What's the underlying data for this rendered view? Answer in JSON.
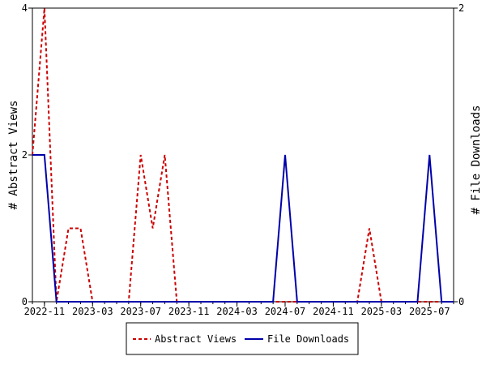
{
  "chart_data": {
    "type": "line",
    "xlabel": "",
    "ylabel_left": "# Abstract Views",
    "ylabel_right": "# File Downloads",
    "ylim_left": [
      0,
      4
    ],
    "ylim_right": [
      0,
      2
    ],
    "yticks_left": [
      "0",
      "2",
      "4"
    ],
    "yticks_right": [
      "0",
      "2"
    ],
    "x_tick_labels": [
      "2022-11",
      "2023-03",
      "2023-07",
      "2023-11",
      "2024-03",
      "2024-07",
      "2024-11",
      "2025-03",
      "2025-07"
    ],
    "x": [
      "2022-10",
      "2022-11",
      "2022-12",
      "2023-01",
      "2023-02",
      "2023-03",
      "2023-04",
      "2023-05",
      "2023-06",
      "2023-07",
      "2023-08",
      "2023-09",
      "2023-10",
      "2023-11",
      "2023-12",
      "2024-01",
      "2024-02",
      "2024-03",
      "2024-04",
      "2024-05",
      "2024-06",
      "2024-07",
      "2024-08",
      "2024-09",
      "2024-10",
      "2024-11",
      "2024-12",
      "2025-01",
      "2025-02",
      "2025-03",
      "2025-04",
      "2025-05",
      "2025-06",
      "2025-07",
      "2025-08",
      "2025-09"
    ],
    "series": [
      {
        "name": "Abstract Views",
        "axis": "left",
        "color": "#cc0000",
        "dash": "dashed",
        "values": [
          2,
          4,
          0,
          1,
          1,
          0,
          0,
          0,
          0,
          2,
          1,
          2,
          0,
          0,
          0,
          0,
          0,
          0,
          0,
          0,
          0,
          0,
          0,
          0,
          0,
          0,
          0,
          0,
          1,
          0,
          0,
          0,
          0,
          0,
          0,
          0
        ]
      },
      {
        "name": "File Downloads",
        "axis": "right",
        "color": "#0000aa",
        "dash": "solid",
        "values": [
          1,
          1,
          0,
          0,
          0,
          0,
          0,
          0,
          0,
          0,
          0,
          0,
          0,
          0,
          0,
          0,
          0,
          0,
          0,
          0,
          0,
          1,
          0,
          0,
          0,
          0,
          0,
          0,
          0,
          0,
          0,
          0,
          0,
          1,
          0,
          0
        ]
      }
    ],
    "legend_position": "bottom",
    "grid": false
  }
}
